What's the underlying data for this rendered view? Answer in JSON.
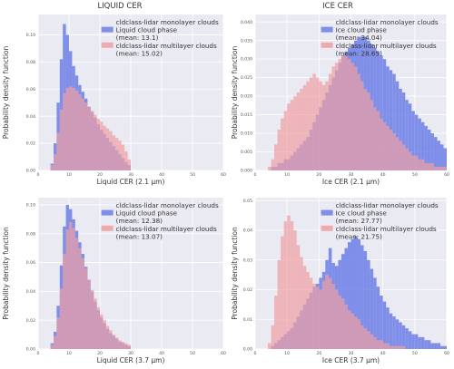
{
  "figure": {
    "column_titles": [
      "LIQUID CER",
      "ICE CER"
    ]
  },
  "chart_data": [
    {
      "type": "bar",
      "panel": "top-left",
      "xlabel": "Liquid CER (2.1 μm)",
      "ylabel": "Probability density function",
      "xlim": [
        0,
        60
      ],
      "ylim": [
        0,
        0.115
      ],
      "xticks": [
        0,
        10,
        20,
        30,
        40,
        50,
        60
      ],
      "yticks": [
        0,
        0.02,
        0.04,
        0.06,
        0.08,
        0.1
      ],
      "ytick_labels": [
        "0.00",
        "0.02",
        "0.04",
        "0.06",
        "0.08",
        "0.10"
      ],
      "bin_width": 1,
      "legend_position": "top-right",
      "legend_lines": [
        {
          "text": "cldclass-lidar monolayer clouds",
          "swatch": null
        },
        {
          "text": "Liquid cloud phase",
          "swatch": 0
        },
        {
          "text": "(mean: 13.1)",
          "swatch": null
        },
        {
          "text": "cldclass-lidar multilayer clouds",
          "swatch": 1
        },
        {
          "text": "(mean: 15.02)",
          "swatch": null
        }
      ],
      "series": [
        {
          "name": "cldclass-lidar monolayer clouds, Liquid cloud phase (mean: 13.1)",
          "color": "#6c7ee6",
          "x": [
            4,
            5,
            6,
            7,
            8,
            9,
            10,
            11,
            12,
            13,
            14,
            15,
            16,
            17,
            18,
            19,
            20,
            21,
            22,
            23,
            24,
            25,
            26,
            27,
            28,
            29
          ],
          "values": [
            0.005,
            0.02,
            0.05,
            0.082,
            0.108,
            0.1,
            0.088,
            0.077,
            0.07,
            0.063,
            0.058,
            0.053,
            0.047,
            0.043,
            0.039,
            0.034,
            0.03,
            0.027,
            0.024,
            0.021,
            0.018,
            0.015,
            0.012,
            0.009,
            0.006,
            0.004
          ]
        },
        {
          "name": "cldclass-lidar multilayer clouds (mean: 15.02)",
          "color": "#eea0a3",
          "x": [
            4,
            5,
            6,
            7,
            8,
            9,
            10,
            11,
            12,
            13,
            14,
            15,
            16,
            17,
            18,
            19,
            20,
            21,
            22,
            23,
            24,
            25,
            26,
            27,
            28,
            29
          ],
          "values": [
            0.004,
            0.012,
            0.028,
            0.045,
            0.057,
            0.061,
            0.062,
            0.061,
            0.059,
            0.056,
            0.053,
            0.05,
            0.047,
            0.044,
            0.041,
            0.038,
            0.036,
            0.033,
            0.031,
            0.029,
            0.026,
            0.024,
            0.022,
            0.019,
            0.014,
            0.008
          ]
        }
      ]
    },
    {
      "type": "bar",
      "panel": "top-right",
      "xlabel": "Ice CER (2.1 μm)",
      "ylabel": "Probability density function",
      "xlim": [
        0,
        60
      ],
      "ylim": [
        0,
        0.042
      ],
      "xticks": [
        0,
        10,
        20,
        30,
        40,
        50,
        60
      ],
      "yticks": [
        0,
        0.005,
        0.01,
        0.015,
        0.02,
        0.025,
        0.03,
        0.035,
        0.04
      ],
      "ytick_labels": [
        "0.000",
        "0.005",
        "0.010",
        "0.015",
        "0.020",
        "0.025",
        "0.030",
        "0.035",
        "0.040"
      ],
      "bin_width": 1,
      "legend_position": "top-right",
      "legend_lines": [
        {
          "text": "cldclass-lidar monolayer clouds",
          "swatch": null
        },
        {
          "text": "Ice cloud phase",
          "swatch": 0
        },
        {
          "text": "(mean: 34.04)",
          "swatch": null
        },
        {
          "text": "cldclass-lidar multilayer clouds",
          "swatch": 1
        },
        {
          "text": "(mean: 28.65)",
          "swatch": null
        }
      ],
      "series": [
        {
          "name": "cldclass-lidar monolayer clouds, Ice cloud phase (mean: 34.04)",
          "color": "#6c7ee6",
          "x": [
            4,
            5,
            6,
            7,
            8,
            9,
            10,
            11,
            12,
            13,
            14,
            15,
            16,
            17,
            18,
            19,
            20,
            21,
            22,
            23,
            24,
            25,
            26,
            27,
            28,
            29,
            30,
            31,
            32,
            33,
            34,
            35,
            36,
            37,
            38,
            39,
            40,
            41,
            42,
            43,
            44,
            45,
            46,
            47,
            48,
            49,
            50,
            51,
            52,
            53,
            54,
            55,
            56,
            57,
            58,
            59
          ],
          "values": [
            0.0,
            0.001,
            0.001,
            0.002,
            0.002,
            0.003,
            0.003,
            0.004,
            0.005,
            0.006,
            0.007,
            0.008,
            0.009,
            0.011,
            0.013,
            0.015,
            0.017,
            0.019,
            0.021,
            0.023,
            0.025,
            0.027,
            0.029,
            0.031,
            0.032,
            0.033,
            0.034,
            0.035,
            0.036,
            0.036,
            0.036,
            0.035,
            0.034,
            0.033,
            0.032,
            0.031,
            0.03,
            0.028,
            0.027,
            0.026,
            0.024,
            0.022,
            0.021,
            0.019,
            0.018,
            0.016,
            0.015,
            0.014,
            0.013,
            0.012,
            0.011,
            0.01,
            0.009,
            0.008,
            0.007,
            0.006
          ]
        },
        {
          "name": "cldclass-lidar multilayer clouds (mean: 28.65)",
          "color": "#eea0a3",
          "x": [
            4,
            5,
            6,
            7,
            8,
            9,
            10,
            11,
            12,
            13,
            14,
            15,
            16,
            17,
            18,
            19,
            20,
            21,
            22,
            23,
            24,
            25,
            26,
            27,
            28,
            29,
            30,
            31,
            32,
            33,
            34,
            35,
            36,
            37,
            38,
            39,
            40,
            41,
            42,
            43,
            44,
            45,
            46,
            47,
            48,
            49,
            50,
            51,
            52,
            53,
            54,
            55,
            56,
            57,
            58,
            59
          ],
          "values": [
            0.001,
            0.003,
            0.007,
            0.011,
            0.014,
            0.016,
            0.018,
            0.019,
            0.02,
            0.021,
            0.022,
            0.023,
            0.024,
            0.025,
            0.026,
            0.025,
            0.024,
            0.023,
            0.024,
            0.026,
            0.028,
            0.029,
            0.03,
            0.031,
            0.031,
            0.03,
            0.029,
            0.028,
            0.026,
            0.024,
            0.022,
            0.021,
            0.019,
            0.017,
            0.016,
            0.014,
            0.013,
            0.012,
            0.011,
            0.01,
            0.009,
            0.008,
            0.007,
            0.006,
            0.005,
            0.004,
            0.004,
            0.003,
            0.003,
            0.002,
            0.002,
            0.002,
            0.001,
            0.001,
            0.001,
            0.001
          ]
        }
      ]
    },
    {
      "type": "bar",
      "panel": "bottom-left",
      "xlabel": "Liquid CER (3.7 μm)",
      "ylabel": "Probability density function",
      "xlim": [
        0,
        60
      ],
      "ylim": [
        0,
        0.105
      ],
      "xticks": [
        0,
        10,
        20,
        30,
        40,
        50,
        60
      ],
      "yticks": [
        0,
        0.02,
        0.04,
        0.06,
        0.08,
        0.1
      ],
      "ytick_labels": [
        "0.00",
        "0.02",
        "0.04",
        "0.06",
        "0.08",
        "0.10"
      ],
      "bin_width": 1,
      "legend_position": "top-right",
      "legend_lines": [
        {
          "text": "cldclass-lidar monolayer clouds",
          "swatch": null
        },
        {
          "text": "Liquid cloud phase",
          "swatch": 0
        },
        {
          "text": "(mean: 12.38)",
          "swatch": null
        },
        {
          "text": "cldclass-lidar multilayer clouds",
          "swatch": 1
        },
        {
          "text": "(mean: 13.07)",
          "swatch": null
        }
      ],
      "series": [
        {
          "name": "cldclass-lidar monolayer clouds, Liquid cloud phase (mean: 12.38)",
          "color": "#6c7ee6",
          "x": [
            4,
            5,
            6,
            7,
            8,
            9,
            10,
            11,
            12,
            13,
            14,
            15,
            16,
            17,
            18,
            19,
            20,
            21,
            22,
            23,
            24,
            25,
            26,
            27,
            28,
            29
          ],
          "values": [
            0.004,
            0.012,
            0.03,
            0.058,
            0.085,
            0.1,
            0.097,
            0.09,
            0.082,
            0.074,
            0.066,
            0.057,
            0.048,
            0.04,
            0.033,
            0.027,
            0.022,
            0.018,
            0.014,
            0.011,
            0.009,
            0.007,
            0.005,
            0.004,
            0.003,
            0.002
          ]
        },
        {
          "name": "cldclass-lidar multilayer clouds (mean: 13.07)",
          "color": "#eea0a3",
          "x": [
            4,
            5,
            6,
            7,
            8,
            9,
            10,
            11,
            12,
            13,
            14,
            15,
            16,
            17,
            18,
            19,
            20,
            21,
            22,
            23,
            24,
            25,
            26,
            27,
            28,
            29
          ],
          "values": [
            0.003,
            0.009,
            0.022,
            0.042,
            0.066,
            0.083,
            0.088,
            0.084,
            0.077,
            0.07,
            0.063,
            0.056,
            0.048,
            0.041,
            0.035,
            0.029,
            0.024,
            0.02,
            0.016,
            0.013,
            0.01,
            0.008,
            0.006,
            0.005,
            0.004,
            0.003
          ]
        }
      ]
    },
    {
      "type": "bar",
      "panel": "bottom-right",
      "xlabel": "Ice CER (3.7 μm)",
      "ylabel": "Probability density function",
      "xlim": [
        0,
        60
      ],
      "ylim": [
        0,
        0.051
      ],
      "xticks": [
        0,
        10,
        20,
        30,
        40,
        50,
        60
      ],
      "yticks": [
        0,
        0.01,
        0.02,
        0.03,
        0.04,
        0.05
      ],
      "ytick_labels": [
        "0.00",
        "0.01",
        "0.02",
        "0.03",
        "0.04",
        "0.05"
      ],
      "bin_width": 1,
      "legend_position": "top-right",
      "legend_lines": [
        {
          "text": "cldclass-lidar monolayer clouds",
          "swatch": null
        },
        {
          "text": "Ice cloud phase",
          "swatch": 0
        },
        {
          "text": "(mean: 27.77)",
          "swatch": null
        },
        {
          "text": "cldclass-lidar multilayer clouds",
          "swatch": 1
        },
        {
          "text": "(mean: 21.75)",
          "swatch": null
        }
      ],
      "series": [
        {
          "name": "cldclass-lidar monolayer clouds, Ice cloud phase (mean: 27.77)",
          "color": "#6c7ee6",
          "x": [
            4,
            5,
            6,
            7,
            8,
            9,
            10,
            11,
            12,
            13,
            14,
            15,
            16,
            17,
            18,
            19,
            20,
            21,
            22,
            23,
            24,
            25,
            26,
            27,
            28,
            29,
            30,
            31,
            32,
            33,
            34,
            35,
            36,
            37,
            38,
            39,
            40,
            41,
            42,
            43,
            44,
            45,
            46,
            47,
            48,
            49,
            50,
            51,
            52,
            53,
            54,
            55,
            56,
            57,
            58,
            59
          ],
          "values": [
            0.0,
            0.001,
            0.002,
            0.003,
            0.004,
            0.005,
            0.006,
            0.007,
            0.009,
            0.011,
            0.013,
            0.015,
            0.017,
            0.019,
            0.021,
            0.022,
            0.024,
            0.026,
            0.03,
            0.034,
            0.029,
            0.028,
            0.03,
            0.032,
            0.034,
            0.036,
            0.037,
            0.038,
            0.037,
            0.035,
            0.033,
            0.03,
            0.027,
            0.024,
            0.021,
            0.018,
            0.016,
            0.014,
            0.012,
            0.011,
            0.01,
            0.009,
            0.008,
            0.007,
            0.006,
            0.005,
            0.005,
            0.004,
            0.004,
            0.003,
            0.003,
            0.002,
            0.002,
            0.002,
            0.001,
            0.001
          ]
        },
        {
          "name": "cldclass-lidar multilayer clouds (mean: 21.75)",
          "color": "#eea0a3",
          "x": [
            4,
            5,
            6,
            7,
            8,
            9,
            10,
            11,
            12,
            13,
            14,
            15,
            16,
            17,
            18,
            19,
            20,
            21,
            22,
            23,
            24,
            25,
            26,
            27,
            28,
            29,
            30,
            31,
            32,
            33,
            34,
            35,
            36,
            37,
            38,
            39,
            40,
            41,
            42,
            43,
            44,
            45,
            46,
            47,
            48,
            49,
            50,
            51,
            52,
            53,
            54,
            55,
            56,
            57,
            58,
            59
          ],
          "values": [
            0.002,
            0.008,
            0.018,
            0.03,
            0.038,
            0.043,
            0.045,
            0.043,
            0.04,
            0.035,
            0.031,
            0.028,
            0.026,
            0.024,
            0.022,
            0.021,
            0.02,
            0.023,
            0.025,
            0.024,
            0.022,
            0.02,
            0.018,
            0.017,
            0.015,
            0.013,
            0.012,
            0.011,
            0.01,
            0.008,
            0.007,
            0.006,
            0.005,
            0.004,
            0.003,
            0.003,
            0.002,
            0.002,
            0.001,
            0.001,
            0.001,
            0.001,
            0.001,
            0.0,
            0.0,
            0.0,
            0.0,
            0.0,
            0.0,
            0.0,
            0.0,
            0.0,
            0.0,
            0.0,
            0.0,
            0.0
          ]
        }
      ]
    }
  ]
}
